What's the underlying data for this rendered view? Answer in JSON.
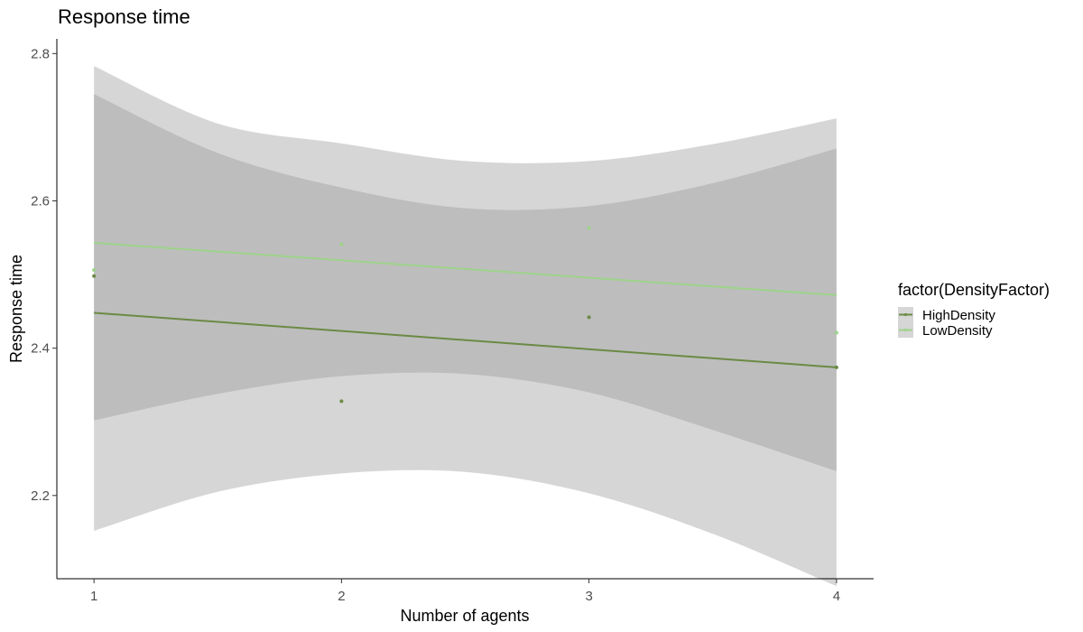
{
  "chart_data": {
    "type": "line",
    "title": "Response time",
    "xlabel": "Number of agents",
    "ylabel": "Response time",
    "xlim": [
      0.85,
      4.15
    ],
    "ylim": [
      2.087,
      2.82
    ],
    "x_ticks": [
      1,
      2,
      3,
      4
    ],
    "x_tick_labels": [
      "1",
      "2",
      "3",
      "4"
    ],
    "y_ticks": [
      2.2,
      2.4,
      2.6,
      2.8
    ],
    "y_tick_labels": [
      "2.2",
      "2.4",
      "2.6",
      "2.8"
    ],
    "legend": {
      "title": "factor(DensityFactor)",
      "position": "right",
      "entries": [
        "HighDensity",
        "LowDensity"
      ]
    },
    "series": [
      {
        "name": "HighDensity",
        "color": "#6b8a45",
        "fit": [
          {
            "x": 1,
            "y": 2.448
          },
          {
            "x": 2,
            "y": 2.423
          },
          {
            "x": 3,
            "y": 2.398
          },
          {
            "x": 4,
            "y": 2.374
          }
        ],
        "ribbon": [
          {
            "x": 1,
            "lo": 2.152,
            "hi": 2.745
          },
          {
            "x": 1.5,
            "lo": 2.205,
            "hi": 2.665
          },
          {
            "x": 2,
            "lo": 2.23,
            "hi": 2.618
          },
          {
            "x": 2.5,
            "lo": 2.232,
            "hi": 2.59
          },
          {
            "x": 3,
            "lo": 2.203,
            "hi": 2.593
          },
          {
            "x": 3.5,
            "lo": 2.148,
            "hi": 2.624
          },
          {
            "x": 4,
            "lo": 2.077,
            "hi": 2.671
          }
        ],
        "points": [
          {
            "x": 1,
            "y": 2.498
          },
          {
            "x": 2,
            "y": 2.328
          },
          {
            "x": 3,
            "y": 2.442
          },
          {
            "x": 4,
            "y": 2.374
          }
        ]
      },
      {
        "name": "LowDensity",
        "color": "#9dd38a",
        "fit": [
          {
            "x": 1,
            "y": 2.543
          },
          {
            "x": 2,
            "y": 2.52
          },
          {
            "x": 3,
            "y": 2.497
          },
          {
            "x": 4,
            "y": 2.472
          }
        ],
        "ribbon": [
          {
            "x": 1,
            "lo": 2.302,
            "hi": 2.783
          },
          {
            "x": 1.5,
            "lo": 2.338,
            "hi": 2.705
          },
          {
            "x": 2,
            "lo": 2.362,
            "hi": 2.678
          },
          {
            "x": 2.5,
            "lo": 2.365,
            "hi": 2.654
          },
          {
            "x": 3,
            "lo": 2.34,
            "hi": 2.654
          },
          {
            "x": 3.5,
            "lo": 2.289,
            "hi": 2.677
          },
          {
            "x": 4,
            "lo": 2.233,
            "hi": 2.712
          }
        ],
        "points": [
          {
            "x": 1,
            "y": 2.506
          },
          {
            "x": 2,
            "y": 2.541
          },
          {
            "x": 3,
            "y": 2.563
          },
          {
            "x": 4,
            "y": 2.421
          }
        ]
      }
    ]
  }
}
